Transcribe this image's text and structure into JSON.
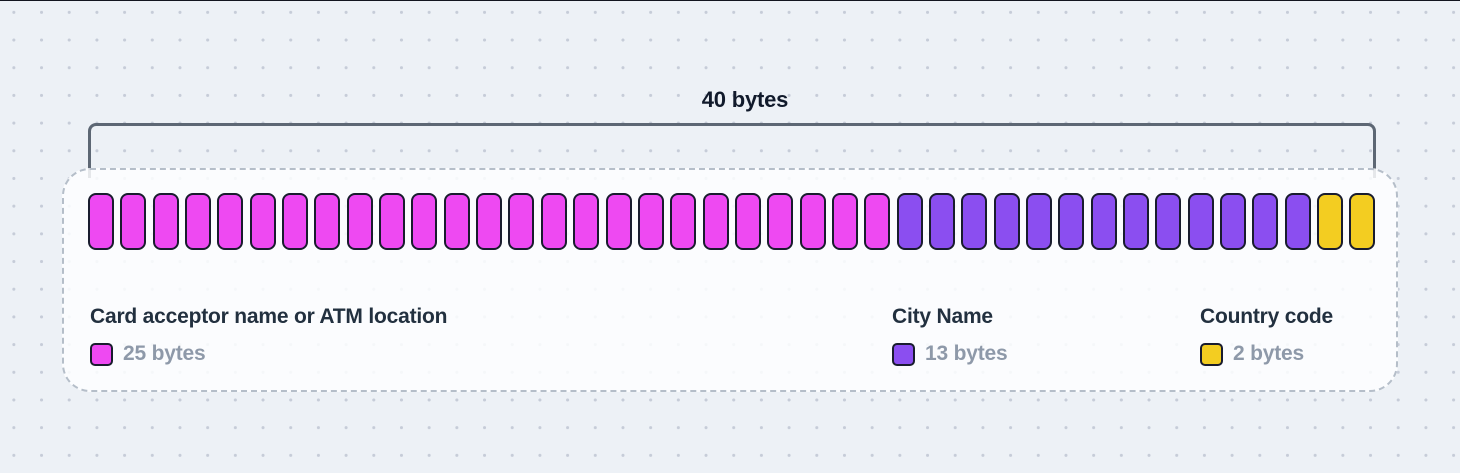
{
  "header": {
    "total_label": "40 bytes"
  },
  "structure": {
    "total_bytes": 40,
    "fields": [
      {
        "name": "Card acceptor name or ATM location",
        "bytes": 25,
        "bytes_label": "25 bytes",
        "color": "#ee49f2"
      },
      {
        "name": "City Name",
        "bytes": 13,
        "bytes_label": "13 bytes",
        "color": "#8b4ef0"
      },
      {
        "name": "Country code",
        "bytes": 2,
        "bytes_label": "2 bytes",
        "color": "#f3cd21"
      }
    ]
  },
  "colors": {
    "background": "#edf1f6",
    "dot": "#c6ccd8",
    "panel_border": "#b5bec9",
    "block_border": "#191c2e",
    "bracket": "#5d6774",
    "title_text": "#22303f",
    "muted_text": "#8e99a9"
  }
}
